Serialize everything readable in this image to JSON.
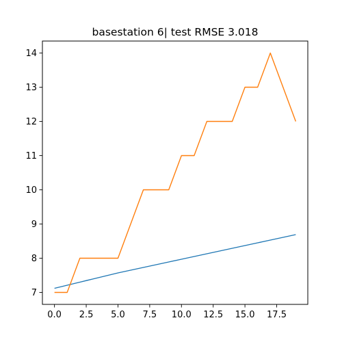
{
  "chart_data": {
    "type": "line",
    "title": "basestation 6| test RMSE 3.018",
    "xlabel": "",
    "ylabel": "",
    "xlim": [
      -0.95,
      19.95
    ],
    "ylim": [
      6.65,
      14.35
    ],
    "xticks": [
      0.0,
      2.5,
      5.0,
      7.5,
      10.0,
      12.5,
      15.0,
      17.5
    ],
    "xtick_labels": [
      "0.0",
      "2.5",
      "5.0",
      "7.5",
      "10.0",
      "12.5",
      "15.0",
      "17.5"
    ],
    "yticks": [
      7,
      8,
      9,
      10,
      11,
      12,
      13,
      14
    ],
    "ytick_labels": [
      "7",
      "8",
      "9",
      "10",
      "11",
      "12",
      "13",
      "14"
    ],
    "grid": false,
    "legend": "none",
    "series": [
      {
        "color": "#1f77b4",
        "x": [
          0,
          1,
          2,
          3,
          4,
          5,
          6,
          7,
          8,
          9,
          10,
          11,
          12,
          13,
          14,
          15,
          16,
          17,
          18,
          19
        ],
        "y": [
          7.12,
          7.21,
          7.3,
          7.39,
          7.48,
          7.57,
          7.65,
          7.73,
          7.81,
          7.89,
          7.97,
          8.05,
          8.13,
          8.21,
          8.29,
          8.37,
          8.45,
          8.53,
          8.61,
          8.69
        ]
      },
      {
        "color": "#ff7f0e",
        "x": [
          0,
          1,
          2,
          3,
          4,
          5,
          6,
          7,
          8,
          9,
          10,
          11,
          12,
          13,
          14,
          15,
          16,
          17,
          18,
          19
        ],
        "y": [
          7,
          7,
          8,
          8,
          8,
          8,
          9,
          10,
          10,
          10,
          11,
          11,
          12,
          12,
          12,
          13,
          13,
          14,
          13,
          12
        ]
      }
    ]
  }
}
